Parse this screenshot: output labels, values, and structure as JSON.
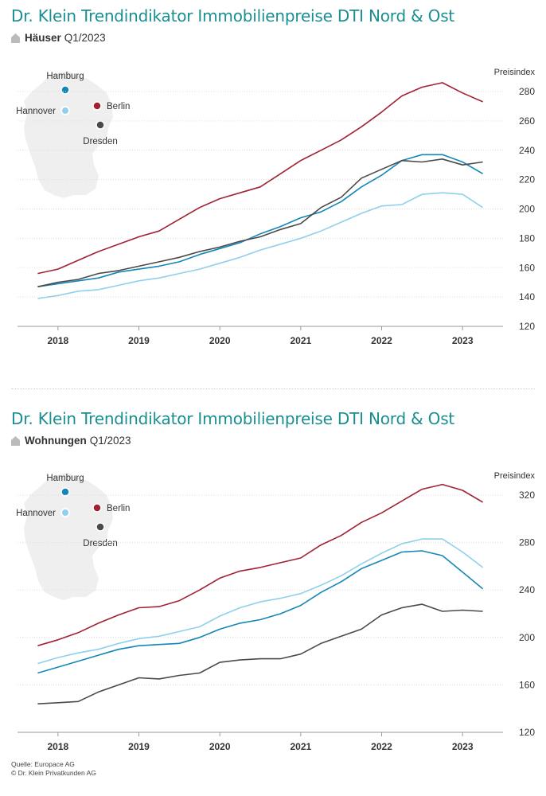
{
  "colors": {
    "title": "#1a8f92",
    "hamburg": "#1487b8",
    "berlin": "#a02233",
    "hannover": "#8fd0ec",
    "dresden": "#4a4a4a",
    "grid": "#dddddd",
    "map": "#efefef"
  },
  "icons": {
    "subtitle": "house-icon"
  },
  "panels": [
    {
      "title": "Dr. Klein Trendindikator Immobilienpreise DTI Nord & Ost",
      "subtitle_bold": "Häuser",
      "subtitle_rest": "Q1/2023"
    },
    {
      "title": "Dr. Klein Trendindikator Immobilienpreise DTI Nord & Ost",
      "subtitle_bold": "Wohnungen",
      "subtitle_rest": "Q1/2023"
    }
  ],
  "footer": {
    "source": "Quelle: Europace AG",
    "copyright": "© Dr. Klein Privatkunden AG"
  },
  "chart_data": [
    {
      "type": "line",
      "ylabel": "Preisindex",
      "ylim": [
        120,
        280
      ],
      "yticks": [
        120,
        140,
        160,
        180,
        200,
        220,
        240,
        260,
        280
      ],
      "xlim": [
        2017.5,
        2023.5
      ],
      "xticks": [
        2018,
        2019,
        2020,
        2021,
        2022,
        2023
      ],
      "grid": "horizontal",
      "legend": "map-inset-top-left",
      "legend_items": [
        {
          "name": "Hamburg",
          "color": "#1487b8"
        },
        {
          "name": "Berlin",
          "color": "#a02233"
        },
        {
          "name": "Hannover",
          "color": "#8fd0ec"
        },
        {
          "name": "Dresden",
          "color": "#4a4a4a"
        }
      ],
      "series": [
        {
          "name": "Berlin",
          "color": "#a02233",
          "x": [
            2017.75,
            2018.0,
            2018.25,
            2018.5,
            2018.75,
            2019.0,
            2019.25,
            2019.5,
            2019.75,
            2020.0,
            2020.25,
            2020.5,
            2020.75,
            2021.0,
            2021.25,
            2021.5,
            2021.75,
            2022.0,
            2022.25,
            2022.5,
            2022.75,
            2023.0,
            2023.25
          ],
          "y": [
            156,
            159,
            165,
            171,
            176,
            181,
            185,
            193,
            201,
            207,
            211,
            215,
            224,
            233,
            240,
            247,
            256,
            266,
            277,
            283,
            286,
            279,
            273
          ]
        },
        {
          "name": "Hamburg",
          "color": "#1487b8",
          "x": [
            2017.75,
            2018.0,
            2018.25,
            2018.5,
            2018.75,
            2019.0,
            2019.25,
            2019.5,
            2019.75,
            2020.0,
            2020.25,
            2020.5,
            2020.75,
            2021.0,
            2021.25,
            2021.5,
            2021.75,
            2022.0,
            2022.25,
            2022.5,
            2022.75,
            2023.0,
            2023.25
          ],
          "y": [
            147,
            149,
            151,
            153,
            157,
            159,
            161,
            164,
            169,
            173,
            177,
            183,
            188,
            194,
            198,
            205,
            215,
            223,
            233,
            237,
            237,
            232,
            224
          ]
        },
        {
          "name": "Hannover",
          "color": "#8fd0ec",
          "x": [
            2017.75,
            2018.0,
            2018.25,
            2018.5,
            2018.75,
            2019.0,
            2019.25,
            2019.5,
            2019.75,
            2020.0,
            2020.25,
            2020.5,
            2020.75,
            2021.0,
            2021.25,
            2021.5,
            2021.75,
            2022.0,
            2022.25,
            2022.5,
            2022.75,
            2023.0,
            2023.25
          ],
          "y": [
            139,
            141,
            144,
            145,
            148,
            151,
            153,
            156,
            159,
            163,
            167,
            172,
            176,
            180,
            185,
            191,
            197,
            202,
            203,
            210,
            211,
            210,
            201
          ]
        },
        {
          "name": "Dresden",
          "color": "#4a4a4a",
          "x": [
            2017.75,
            2018.0,
            2018.25,
            2018.5,
            2018.75,
            2019.0,
            2019.25,
            2019.5,
            2019.75,
            2020.0,
            2020.25,
            2020.5,
            2020.75,
            2021.0,
            2021.25,
            2021.5,
            2021.75,
            2022.0,
            2022.25,
            2022.5,
            2022.75,
            2023.0,
            2023.25
          ],
          "y": [
            147,
            150,
            152,
            156,
            158,
            161,
            164,
            167,
            171,
            174,
            178,
            181,
            186,
            190,
            201,
            208,
            221,
            227,
            233,
            232,
            234,
            230,
            232
          ]
        }
      ]
    },
    {
      "type": "line",
      "ylabel": "Preisindex",
      "ylim": [
        120,
        320
      ],
      "yticks": [
        120,
        160,
        200,
        240,
        280,
        320
      ],
      "xlim": [
        2017.5,
        2023.5
      ],
      "xticks": [
        2018,
        2019,
        2020,
        2021,
        2022,
        2023
      ],
      "grid": "horizontal",
      "legend": "map-inset-top-left",
      "legend_items": [
        {
          "name": "Hamburg",
          "color": "#1487b8"
        },
        {
          "name": "Berlin",
          "color": "#a02233"
        },
        {
          "name": "Hannover",
          "color": "#8fd0ec"
        },
        {
          "name": "Dresden",
          "color": "#4a4a4a"
        }
      ],
      "series": [
        {
          "name": "Berlin",
          "color": "#a02233",
          "x": [
            2017.75,
            2018.0,
            2018.25,
            2018.5,
            2018.75,
            2019.0,
            2019.25,
            2019.5,
            2019.75,
            2020.0,
            2020.25,
            2020.5,
            2020.75,
            2021.0,
            2021.25,
            2021.5,
            2021.75,
            2022.0,
            2022.25,
            2022.5,
            2022.75,
            2023.0,
            2023.25
          ],
          "y": [
            193,
            198,
            204,
            212,
            219,
            225,
            226,
            231,
            240,
            250,
            256,
            259,
            263,
            267,
            278,
            286,
            297,
            305,
            315,
            325,
            329,
            324,
            314
          ]
        },
        {
          "name": "Hannover",
          "color": "#8fd0ec",
          "x": [
            2017.75,
            2018.0,
            2018.25,
            2018.5,
            2018.75,
            2019.0,
            2019.25,
            2019.5,
            2019.75,
            2020.0,
            2020.25,
            2020.5,
            2020.75,
            2021.0,
            2021.25,
            2021.5,
            2021.75,
            2022.0,
            2022.25,
            2022.5,
            2022.75,
            2023.0,
            2023.25
          ],
          "y": [
            178,
            183,
            187,
            190,
            195,
            199,
            201,
            205,
            209,
            218,
            225,
            230,
            233,
            237,
            244,
            252,
            262,
            271,
            279,
            283,
            283,
            272,
            259
          ]
        },
        {
          "name": "Hamburg",
          "color": "#1487b8",
          "x": [
            2017.75,
            2018.0,
            2018.25,
            2018.5,
            2018.75,
            2019.0,
            2019.25,
            2019.5,
            2019.75,
            2020.0,
            2020.25,
            2020.5,
            2020.75,
            2021.0,
            2021.25,
            2021.5,
            2021.75,
            2022.0,
            2022.25,
            2022.5,
            2022.75,
            2023.0,
            2023.25
          ],
          "y": [
            170,
            175,
            180,
            185,
            190,
            193,
            194,
            195,
            200,
            207,
            212,
            215,
            220,
            227,
            238,
            247,
            258,
            265,
            272,
            273,
            269,
            255,
            241
          ]
        },
        {
          "name": "Dresden",
          "color": "#4a4a4a",
          "x": [
            2017.75,
            2018.0,
            2018.25,
            2018.5,
            2018.75,
            2019.0,
            2019.25,
            2019.5,
            2019.75,
            2020.0,
            2020.25,
            2020.5,
            2020.75,
            2021.0,
            2021.25,
            2021.5,
            2021.75,
            2022.0,
            2022.25,
            2022.5,
            2022.75,
            2023.0,
            2023.25
          ],
          "y": [
            144,
            145,
            146,
            154,
            160,
            166,
            165,
            168,
            170,
            179,
            181,
            182,
            182,
            186,
            195,
            201,
            207,
            219,
            225,
            228,
            222,
            223,
            222
          ]
        }
      ]
    }
  ]
}
